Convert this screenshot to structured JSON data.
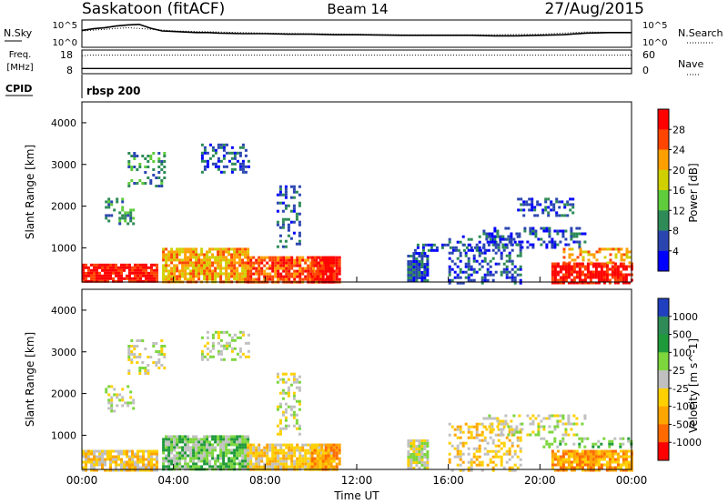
{
  "header": {
    "station": "Saskatoon (fitACF)",
    "beam": "Beam 14",
    "date": "27/Aug/2015"
  },
  "chart_data": [
    {
      "type": "line",
      "name": "noise-panel",
      "left_label": "N.Sky",
      "right_label": "N.Search",
      "left_ticks": [
        "10^5",
        "10^0"
      ],
      "right_ticks": [
        "10^5",
        "10^0"
      ],
      "series": [
        {
          "role": "N.Sky",
          "style": "solid",
          "x_hours": [
            0,
            0.5,
            1,
            1.5,
            2,
            2.5,
            3,
            3.5,
            4,
            4.5,
            5,
            5.5,
            6,
            7,
            8,
            9,
            10,
            11,
            12,
            14,
            16,
            17,
            18,
            19,
            20,
            21,
            22,
            23,
            24
          ],
          "log_values": [
            3.1,
            3.4,
            3.6,
            3.9,
            4.1,
            4.2,
            3.5,
            3.0,
            2.9,
            2.8,
            2.7,
            2.7,
            2.6,
            2.5,
            2.5,
            2.4,
            2.4,
            2.3,
            2.3,
            2.2,
            2.2,
            2.2,
            2.1,
            2.1,
            2.2,
            2.3,
            2.6,
            2.7,
            2.7
          ]
        },
        {
          "role": "N.Search",
          "style": "dotted",
          "x_hours": [
            0,
            2,
            4,
            6,
            8,
            10,
            12,
            14,
            16,
            18,
            20,
            22,
            24
          ],
          "log_values": [
            3.0,
            3.6,
            3.0,
            2.8,
            2.6,
            2.5,
            2.4,
            2.3,
            2.3,
            2.3,
            2.4,
            2.8,
            2.7
          ]
        }
      ]
    },
    {
      "type": "line",
      "name": "freq-nave-panel",
      "left_label_top": "Freq.",
      "left_label_bottom": "[MHz]",
      "right_label": "Nave",
      "left_ticks": [
        "18",
        "8"
      ],
      "right_ticks": [
        "60",
        "0"
      ],
      "series": [
        {
          "role": "Freq",
          "style": "solid",
          "x_hours": [
            0,
            24
          ],
          "values_mhz": [
            10.2,
            10.2
          ]
        },
        {
          "role": "Nave",
          "style": "dotted",
          "x_hours": [
            0,
            0.3,
            24
          ],
          "values": [
            45,
            47,
            47
          ]
        }
      ]
    },
    {
      "type": "text",
      "name": "cpid-row",
      "label": "CPID",
      "program": "rbsp 200"
    },
    {
      "type": "heatmap",
      "name": "power-panel",
      "ylabel": "Slant Range [km]",
      "ylim": [
        180,
        4500
      ],
      "yticks": [
        "1000",
        "2000",
        "3000",
        "4000"
      ],
      "colorbar_label": "Power [dB]",
      "colorbar_ticks": [
        "4",
        "8",
        "12",
        "16",
        "20",
        "24",
        "28"
      ],
      "colors": [
        "#0000ff",
        "#2a45b0",
        "#2e8b57",
        "#5fcc3c",
        "#d0d000",
        "#ffa000",
        "#ff4500",
        "#ff0000"
      ],
      "regions": [
        {
          "t": [
            0,
            3.3
          ],
          "r": [
            180,
            620
          ],
          "level": 7
        },
        {
          "t": [
            1.0,
            2.2
          ],
          "r": [
            1600,
            2200
          ],
          "level": 2
        },
        {
          "t": [
            2.0,
            3.6
          ],
          "r": [
            2500,
            3300
          ],
          "level": 2
        },
        {
          "t": [
            3.5,
            7.2
          ],
          "r": [
            180,
            1000
          ],
          "level": 5
        },
        {
          "t": [
            5.2,
            7.3
          ],
          "r": [
            2800,
            3500
          ],
          "level": 1
        },
        {
          "t": [
            7.2,
            11.0
          ],
          "r": [
            180,
            800
          ],
          "level": 6
        },
        {
          "t": [
            8.5,
            9.5
          ],
          "r": [
            1000,
            2500
          ],
          "level": 1
        },
        {
          "t": [
            10.0,
            11.2
          ],
          "r": [
            180,
            800
          ],
          "level": 7
        },
        {
          "t": [
            14.2,
            15.1
          ],
          "r": [
            180,
            900
          ],
          "level": 1
        },
        {
          "t": [
            14.5,
            17.8
          ],
          "r": [
            950,
            1100
          ],
          "level": 1
        },
        {
          "t": [
            16.0,
            19.2
          ],
          "r": [
            180,
            1300
          ],
          "level": 1
        },
        {
          "t": [
            17.5,
            22.0
          ],
          "r": [
            1000,
            1500
          ],
          "level": 1
        },
        {
          "t": [
            19.0,
            21.5
          ],
          "r": [
            1800,
            2200
          ],
          "level": 1
        },
        {
          "t": [
            20.5,
            24.0
          ],
          "r": [
            180,
            650
          ],
          "level": 7
        },
        {
          "t": [
            21.0,
            24.0
          ],
          "r": [
            650,
            1000
          ],
          "level": 5
        }
      ]
    },
    {
      "type": "heatmap",
      "name": "velocity-panel",
      "ylabel": "Slant Range [km]",
      "ylim": [
        180,
        4500
      ],
      "yticks": [
        "1000",
        "2000",
        "3000",
        "4000"
      ],
      "xlabel": "Time UT",
      "xticks": [
        "00:00",
        "04:00",
        "08:00",
        "12:00",
        "16:00",
        "20:00",
        "00:00"
      ],
      "xlim_hours": [
        0,
        24
      ],
      "colorbar_label": "Velocity [m s^-1]",
      "colorbar_ticks": [
        "1000",
        "500",
        "100",
        "25",
        "-25",
        "-100",
        "-500",
        "-1000"
      ],
      "colors": [
        "#2040c0",
        "#2e8b57",
        "#1f9a3a",
        "#7cd63c",
        "#c0c0c0",
        "#ffd000",
        "#ffa500",
        "#ff6a00",
        "#ff0000"
      ],
      "regions": [
        {
          "t": [
            0,
            3.3
          ],
          "r": [
            180,
            650
          ],
          "level": 5
        },
        {
          "t": [
            1.0,
            2.2
          ],
          "r": [
            1600,
            2200
          ],
          "level": 4
        },
        {
          "t": [
            2.0,
            3.6
          ],
          "r": [
            2500,
            3300
          ],
          "level": 4
        },
        {
          "t": [
            3.5,
            7.2
          ],
          "r": [
            180,
            1000
          ],
          "level": 3
        },
        {
          "t": [
            5.2,
            7.3
          ],
          "r": [
            2800,
            3500
          ],
          "level": 4
        },
        {
          "t": [
            7.2,
            11.0
          ],
          "r": [
            180,
            800
          ],
          "level": 5
        },
        {
          "t": [
            8.5,
            9.5
          ],
          "r": [
            1000,
            2500
          ],
          "level": 4
        },
        {
          "t": [
            10.0,
            11.2
          ],
          "r": [
            180,
            800
          ],
          "level": 6
        },
        {
          "t": [
            14.2,
            15.1
          ],
          "r": [
            180,
            900
          ],
          "level": 4
        },
        {
          "t": [
            16.0,
            19.2
          ],
          "r": [
            180,
            1300
          ],
          "level": 5
        },
        {
          "t": [
            17.5,
            22.0
          ],
          "r": [
            1000,
            1500
          ],
          "level": 4
        },
        {
          "t": [
            20.0,
            24.0
          ],
          "r": [
            700,
            950
          ],
          "level": 3
        },
        {
          "t": [
            20.5,
            24.0
          ],
          "r": [
            180,
            650
          ],
          "level": 6
        }
      ]
    }
  ]
}
